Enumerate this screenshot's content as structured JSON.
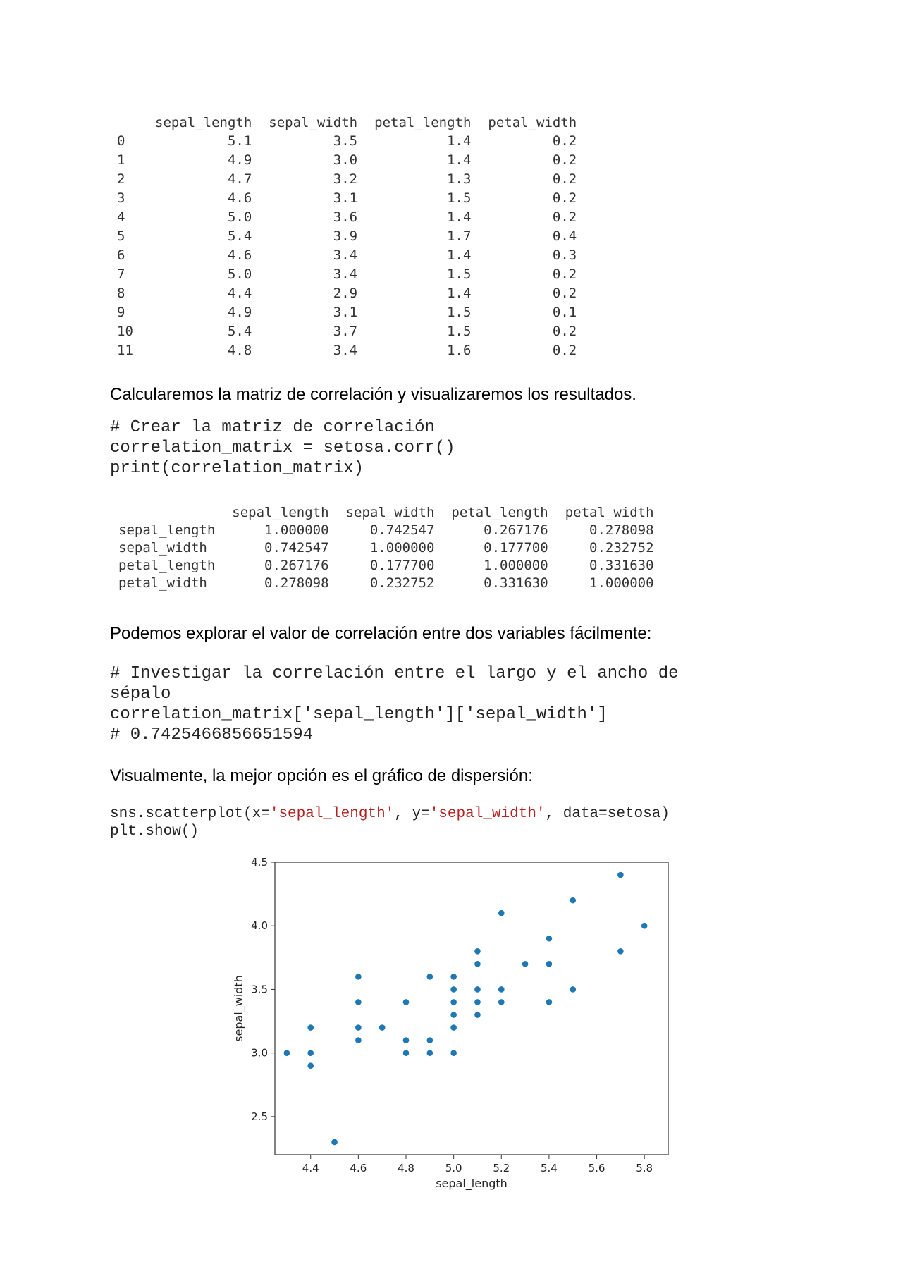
{
  "table1": {
    "columns": [
      "",
      "sepal_length",
      "sepal_width",
      "petal_length",
      "petal_width"
    ],
    "rows": [
      [
        "0",
        "5.1",
        "3.5",
        "1.4",
        "0.2"
      ],
      [
        "1",
        "4.9",
        "3.0",
        "1.4",
        "0.2"
      ],
      [
        "2",
        "4.7",
        "3.2",
        "1.3",
        "0.2"
      ],
      [
        "3",
        "4.6",
        "3.1",
        "1.5",
        "0.2"
      ],
      [
        "4",
        "5.0",
        "3.6",
        "1.4",
        "0.2"
      ],
      [
        "5",
        "5.4",
        "3.9",
        "1.7",
        "0.4"
      ],
      [
        "6",
        "4.6",
        "3.4",
        "1.4",
        "0.3"
      ],
      [
        "7",
        "5.0",
        "3.4",
        "1.5",
        "0.2"
      ],
      [
        "8",
        "4.4",
        "2.9",
        "1.4",
        "0.2"
      ],
      [
        "9",
        "4.9",
        "3.1",
        "1.5",
        "0.1"
      ],
      [
        "10",
        "5.4",
        "3.7",
        "1.5",
        "0.2"
      ],
      [
        "11",
        "4.8",
        "3.4",
        "1.6",
        "0.2"
      ]
    ]
  },
  "para1": "Calcularemos la matriz de correlación y visualizaremos los resultados.",
  "code1": {
    "line1": "# Crear la matriz de correlación",
    "line2": "correlation_matrix = setosa.corr()",
    "line3": "print(correlation_matrix)"
  },
  "table2": {
    "columns": [
      "",
      "sepal_length",
      "sepal_width",
      "petal_length",
      "petal_width"
    ],
    "rows": [
      [
        "sepal_length",
        "1.000000",
        "0.742547",
        "0.267176",
        "0.278098"
      ],
      [
        "sepal_width",
        "0.742547",
        "1.000000",
        "0.177700",
        "0.232752"
      ],
      [
        "petal_length",
        "0.267176",
        "0.177700",
        "1.000000",
        "0.331630"
      ],
      [
        "petal_width",
        "0.278098",
        "0.232752",
        "0.331630",
        "1.000000"
      ]
    ]
  },
  "para2": "Podemos explorar el valor de correlación entre dos variables fácilmente:",
  "code2": {
    "line1": "# Investigar la correlación entre el largo y el ancho de",
    "line2": "sépalo",
    "line3": "correlation_matrix['sepal_length']['sepal_width']",
    "line4": "# 0.7425466856651594"
  },
  "para3": "Visualmente, la mejor opción es el gráfico de dispersión:",
  "code3": {
    "l1_a": "sns.scatterplot(x=",
    "l1_b": "'sepal_length'",
    "l1_c": ", y=",
    "l1_d": "'sepal_width'",
    "l1_e": ", data=setosa)",
    "line2": "plt.show()"
  },
  "chart_data": {
    "type": "scatter",
    "xlabel": "sepal_length",
    "ylabel": "sepal_width",
    "xlim": [
      4.25,
      5.9
    ],
    "ylim": [
      2.2,
      4.5
    ],
    "xticks": [
      "4.4",
      "4.6",
      "4.8",
      "5.0",
      "5.2",
      "5.4",
      "5.6",
      "5.8"
    ],
    "yticks": [
      "2.5",
      "3.0",
      "3.5",
      "4.0",
      "4.5"
    ],
    "point_color": "#1f77b4",
    "points": [
      [
        4.3,
        3.0
      ],
      [
        4.4,
        3.2
      ],
      [
        4.4,
        3.0
      ],
      [
        4.4,
        2.9
      ],
      [
        4.5,
        2.3
      ],
      [
        4.6,
        3.6
      ],
      [
        4.6,
        3.4
      ],
      [
        4.6,
        3.2
      ],
      [
        4.6,
        3.1
      ],
      [
        4.7,
        3.2
      ],
      [
        4.8,
        3.4
      ],
      [
        4.8,
        3.1
      ],
      [
        4.8,
        3.0
      ],
      [
        4.9,
        3.6
      ],
      [
        4.9,
        3.1
      ],
      [
        4.9,
        3.0
      ],
      [
        5.0,
        3.6
      ],
      [
        5.0,
        3.5
      ],
      [
        5.0,
        3.4
      ],
      [
        5.0,
        3.3
      ],
      [
        5.0,
        3.2
      ],
      [
        5.0,
        3.0
      ],
      [
        5.1,
        3.8
      ],
      [
        5.1,
        3.7
      ],
      [
        5.1,
        3.5
      ],
      [
        5.1,
        3.4
      ],
      [
        5.1,
        3.3
      ],
      [
        5.2,
        4.1
      ],
      [
        5.2,
        3.5
      ],
      [
        5.2,
        3.4
      ],
      [
        5.3,
        3.7
      ],
      [
        5.4,
        3.9
      ],
      [
        5.4,
        3.7
      ],
      [
        5.4,
        3.4
      ],
      [
        5.5,
        4.2
      ],
      [
        5.5,
        3.5
      ],
      [
        5.7,
        4.4
      ],
      [
        5.7,
        3.8
      ],
      [
        5.8,
        4.0
      ]
    ]
  }
}
